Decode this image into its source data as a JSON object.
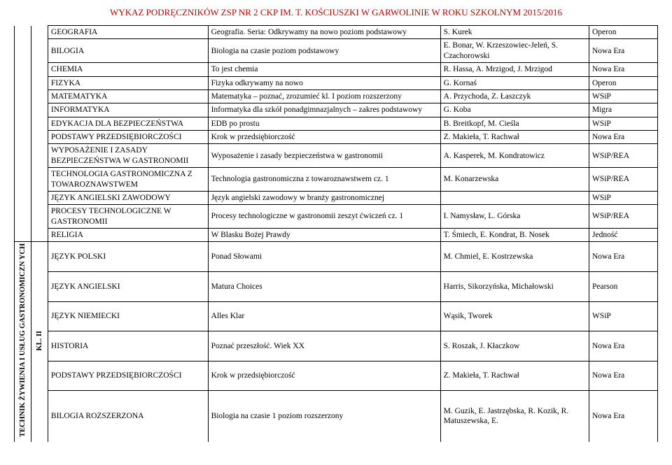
{
  "header": {
    "title": "WYKAZ PODRĘCZNIKÓW ZSP NR 2 CKP IM. T. KOŚCIUSZKI W GARWOLINIE W ROKU SZKOLNYM 2015/2016"
  },
  "labels": {
    "group2": "TECHNIK ŻYWIENIA I USŁUG GASTRONOMICZN YCH",
    "group2_right": "KL. II"
  },
  "rows": [
    {
      "subject": "GEOGRAFIA",
      "textbook": "Geografia. Seria: Odkrywamy na nowo poziom podstawowy",
      "author": "S. Kurek",
      "publisher": "Operon"
    },
    {
      "subject": "BILOGIA",
      "textbook": "Biologia na czasie poziom podstawowy",
      "author": "E. Bonar, W. Krzeszowiec-Jeleń, S. Czachorowski",
      "publisher": "Nowa Era"
    },
    {
      "subject": "CHEMIA",
      "textbook": "To jest chemia",
      "author": "R. Hassa, A. Mrzigod, J. Mrzigod",
      "publisher": "Nowa Era"
    },
    {
      "subject": "FIZYKA",
      "textbook": "Fizyka  odkrywamy na nowo",
      "author": "G. Kornaś",
      "publisher": "Operon"
    },
    {
      "subject": "MATEMATYKA",
      "textbook": "Matematyka – poznać, zrozumieć kl. I poziom rozszerzony",
      "author": "A. Przychoda, Z. Łaszczyk",
      "publisher": "WSiP"
    },
    {
      "subject": "INFORMATYKA",
      "textbook": "Informatyka dla szkół ponadgimnazjalnych – zakres podstawowy",
      "author": "G. Koba",
      "publisher": "Migra"
    },
    {
      "subject": "EDYKACJA DLA BEZPIECZEŃSTWA",
      "textbook": "EDB po prostu",
      "author": "B. Breitkopf, M. Cieśla",
      "publisher": "WSiP"
    },
    {
      "subject": "PODSTAWY PRZEDSIĘBIORCZOŚCI",
      "textbook": "Krok w przedsiębiorczość",
      "author": "Z. Makieła, T. Rachwał",
      "publisher": "Nowa Era"
    },
    {
      "subject": "WYPOSAŻENIE I ZASADY BEZPIECZEŃSTWA W GASTRONOMII",
      "textbook": "Wyposażenie i zasady bezpieczeństwa w gastronomii",
      "author": "A. Kasperek, M. Kondratowicz",
      "publisher": "WSiP/REA"
    },
    {
      "subject": "TECHNOLOGIA GASTRONOMICZNA Z TOWAROZNAWSTWEM",
      "textbook": "Technologia gastronomiczna z towaroznawstwem cz. 1",
      "author": "M. Konarzewska",
      "publisher": "WSiP/REA"
    },
    {
      "subject": "JĘZYK ANGIELSKI ZAWODOWY",
      "textbook": "Język angielski zawodowy w branży gastronomicznej",
      "author": "",
      "publisher": "WSiP"
    },
    {
      "subject": "PROCESY TECHNOLOGICZNE W GASTRONOMII",
      "textbook": "Procesy technologiczne w gastronomii zeszyt ćwiczeń cz. 1",
      "author": "I. Namysław, L. Górska",
      "publisher": "WSiP/REA"
    },
    {
      "subject": "RELIGIA",
      "textbook": "W Blasku Bożej Prawdy",
      "author": "T. Śmiech, E. Kondrat, B. Nosek",
      "publisher": "Jedność"
    }
  ],
  "rows2": [
    {
      "subject": "JĘZYK POLSKI",
      "textbook": "Ponad Słowami",
      "author": "M. Chmiel, E. Kostrzewska",
      "publisher": "Nowa Era"
    },
    {
      "subject": "JĘZYK ANGIELSKI",
      "textbook": "Matura Choices",
      "author": "Harris, Sikorzyńska, Michałowski",
      "publisher": "Pearson"
    },
    {
      "subject": "JĘZYK NIEMIECKI",
      "textbook": "Alles Klar",
      "author": "Wąsik, Tworek",
      "publisher": "WSiP"
    },
    {
      "subject": "HISTORIA",
      "textbook": "Poznać przeszłość. Wiek XX",
      "author": "S. Roszak, J. Kłaczkow",
      "publisher": "Nowa Era"
    },
    {
      "subject": "PODSTAWY PRZEDSIĘBIORCZOŚCI",
      "textbook": "Krok w przedsiębiorczość",
      "author": "Z. Makieła, T. Rachwał",
      "publisher": "Nowa Era"
    },
    {
      "subject": "BILOGIA ROZSZERZONA",
      "textbook": "Biologia na czasie 1 poziom rozszerzony",
      "author": "M. Guzik, E. Jastrzębska, R. Kozik, R. Matuszewska, E.",
      "publisher": "Nowa Era"
    }
  ]
}
